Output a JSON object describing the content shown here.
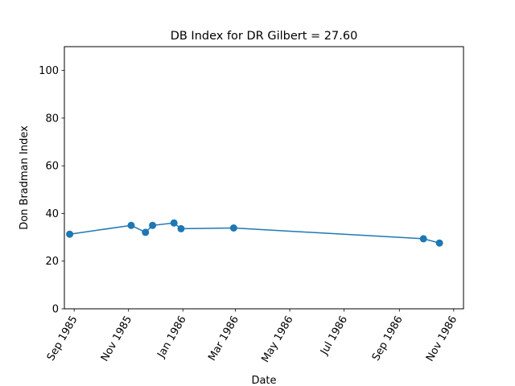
{
  "chart_data": {
    "type": "line",
    "title": "DB Index for DR Gilbert = 27.60",
    "xlabel": "Date",
    "ylabel": "Don Bradman Index",
    "ylim": [
      0,
      110
    ],
    "yticks": [
      0,
      20,
      40,
      60,
      80,
      100
    ],
    "xlim": [
      "1985-08-21",
      "1986-11-12"
    ],
    "xticks": [
      {
        "date": "1985-09-01",
        "label": "Sep 1985"
      },
      {
        "date": "1985-11-01",
        "label": "Nov 1985"
      },
      {
        "date": "1986-01-01",
        "label": "Jan 1986"
      },
      {
        "date": "1986-03-01",
        "label": "Mar 1986"
      },
      {
        "date": "1986-05-01",
        "label": "May 1986"
      },
      {
        "date": "1986-07-01",
        "label": "Jul 1986"
      },
      {
        "date": "1986-09-01",
        "label": "Sep 1986"
      },
      {
        "date": "1986-11-01",
        "label": "Nov 1986"
      }
    ],
    "grid": false,
    "series": [
      {
        "color": "#1f77b4",
        "marker": "circle",
        "x": [
          "1985-08-27",
          "1985-11-04",
          "1985-11-20",
          "1985-11-28",
          "1985-12-22",
          "1985-12-30",
          "1986-02-27",
          "1986-09-28",
          "1986-10-16"
        ],
        "y": [
          31.3,
          35.0,
          32.1,
          35.0,
          36.0,
          33.6,
          33.9,
          29.4,
          27.6
        ]
      }
    ]
  }
}
